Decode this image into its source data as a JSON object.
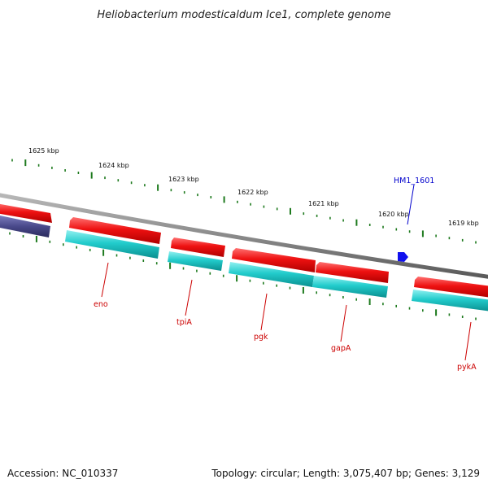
{
  "title": "Heliobacterium modesticaldum Ice1, complete genome",
  "footer": {
    "accession": "Accession: NC_010337",
    "summary": "Topology: circular; Length: 3,075,407 bp; Genes: 3,129"
  },
  "scale": {
    "unit": "kbp",
    "ticks": [
      {
        "label": "1625 kbp"
      },
      {
        "label": "1624 kbp"
      },
      {
        "label": "1623 kbp"
      },
      {
        "label": "1622 kbp"
      },
      {
        "label": "1621 kbp"
      },
      {
        "label": "1620 kbp"
      },
      {
        "label": "1619 kbp"
      }
    ]
  },
  "colors": {
    "backbone": "#8a8a8a",
    "forward_gene": "#ee1111",
    "reverse_cds": "#22cccc",
    "other_gene": "#4a4a8c",
    "feature_arrow": "#1111ee",
    "tick": "#1e7a1e",
    "gene_label": "#cc0000",
    "feature_label": "#0000cc"
  },
  "features": {
    "label": "HM1_1601"
  },
  "gene_labels": [
    {
      "label": "eno"
    },
    {
      "label": "tpiA"
    },
    {
      "label": "pgk"
    },
    {
      "label": "gapA"
    },
    {
      "label": "pykA"
    }
  ]
}
